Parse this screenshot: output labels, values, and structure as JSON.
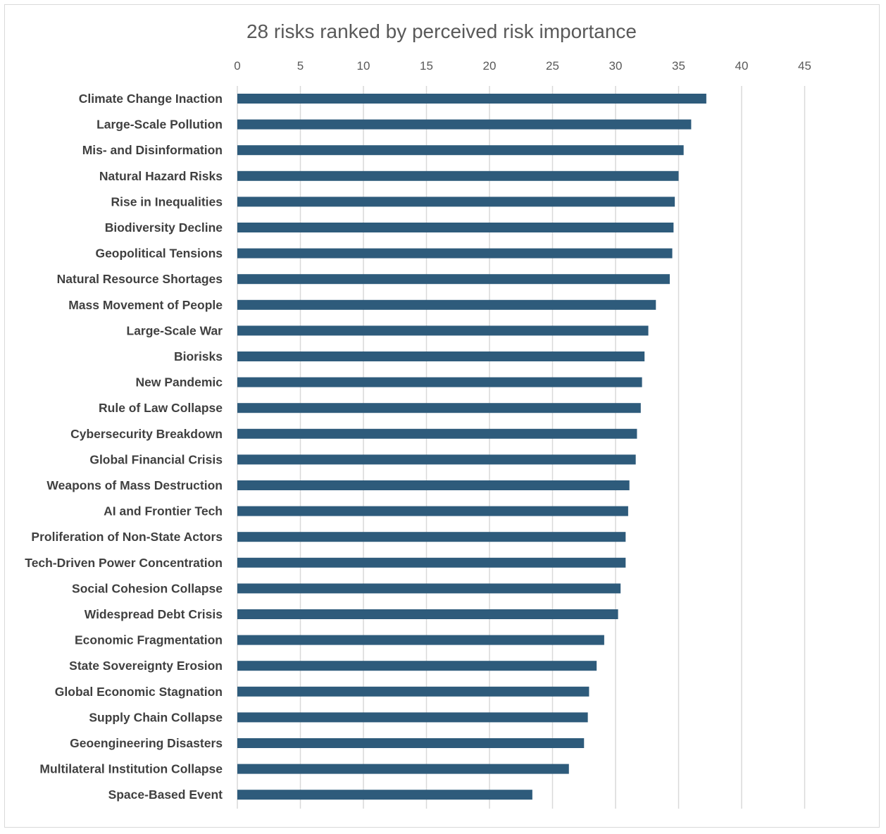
{
  "chart_data": {
    "type": "bar",
    "orientation": "horizontal",
    "title": "28 risks ranked by perceived risk importance",
    "xlabel": "",
    "ylabel": "",
    "xlim": [
      0,
      45
    ],
    "xticks": [
      0,
      5,
      10,
      15,
      20,
      25,
      30,
      35,
      40,
      45
    ],
    "axis_position": "top",
    "grid": true,
    "legend": "none",
    "bar_color": "#2e5b7b",
    "categories": [
      "Climate Change Inaction",
      "Large-Scale Pollution",
      "Mis- and Disinformation",
      "Natural Hazard Risks",
      "Rise in Inequalities",
      "Biodiversity Decline",
      "Geopolitical Tensions",
      "Natural Resource Shortages",
      "Mass Movement of People",
      "Large-Scale War",
      "Biorisks",
      "New Pandemic",
      "Rule of Law Collapse",
      "Cybersecurity Breakdown",
      "Global Financial Crisis",
      "Weapons of Mass Destruction",
      "AI and Frontier Tech",
      "Proliferation of Non-State Actors",
      "Tech-Driven Power Concentration",
      "Social Cohesion Collapse",
      "Widespread Debt Crisis",
      "Economic Fragmentation",
      "State Sovereignty Erosion",
      "Global Economic Stagnation",
      "Supply Chain Collapse",
      "Geoengineering Disasters",
      "Multilateral Institution Collapse",
      "Space-Based Event"
    ],
    "values": [
      37.2,
      36.0,
      35.4,
      35.0,
      34.7,
      34.6,
      34.5,
      34.3,
      33.2,
      32.6,
      32.3,
      32.1,
      32.0,
      31.7,
      31.6,
      31.1,
      31.0,
      30.8,
      30.8,
      30.4,
      30.2,
      29.1,
      28.5,
      27.9,
      27.8,
      27.5,
      26.3,
      23.4
    ]
  }
}
